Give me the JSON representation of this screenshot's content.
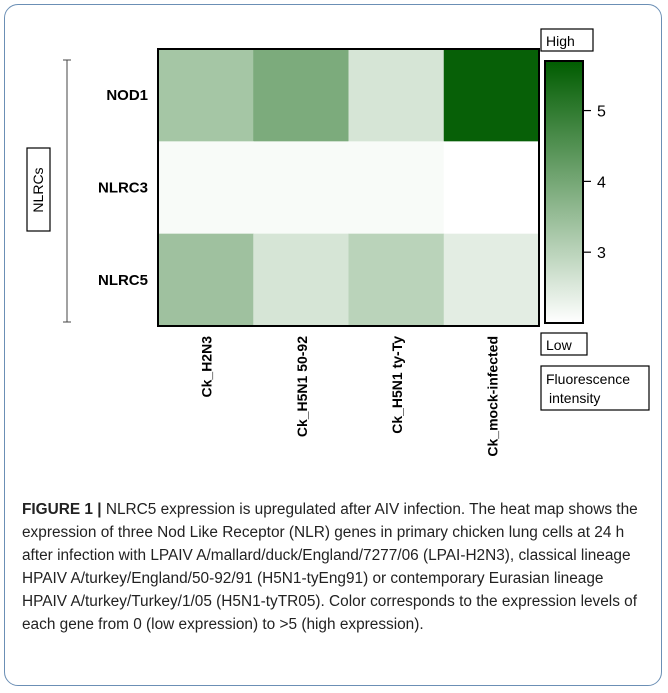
{
  "chart_data": {
    "type": "heatmap",
    "columns": [
      "Ck_H2N3",
      "Ck_H5N1 50-92",
      "Ck_H5N1 ty-Ty",
      "Ck_mock-infected"
    ],
    "rows": [
      "NOD1",
      "NLRC3",
      "NLRC5"
    ],
    "values": [
      [
        3.3,
        3.9,
        2.6,
        5.6
      ],
      [
        2.1,
        2.1,
        2.1,
        2.0
      ],
      [
        3.4,
        2.6,
        3.0,
        2.4
      ]
    ],
    "row_group_label": "NLRCs",
    "colorbar": {
      "min": 2.0,
      "max": 5.7,
      "ticks": [
        "5",
        "4",
        "3"
      ],
      "tick_values": [
        5,
        4,
        3
      ],
      "high_label": "High",
      "low_label": "Low",
      "title_line1": "Fluorescence",
      "title_line2": "intensity",
      "color_low": "#ffffff",
      "color_high": "#005c00"
    }
  },
  "caption": {
    "label": "FIGURE 1 |",
    "text": "NLRC5 expression is upregulated after AIV infection. The heat map shows the expression of three Nod Like Receptor (NLR) genes in primary chicken lung cells at 24 h after infection with LPAIV A/mallard/duck/England/7277/06 (LPAI-H2N3), classical lineage HPAIV A/turkey/England/50-92/91 (H5N1-tyEng91) or contemporary Eurasian lineage HPAIV A/turkey/Turkey/1/05 (H5N1-tyTR05). Color corresponds to the expression levels of each gene from 0 (low expression) to >5 (high expression)."
  }
}
